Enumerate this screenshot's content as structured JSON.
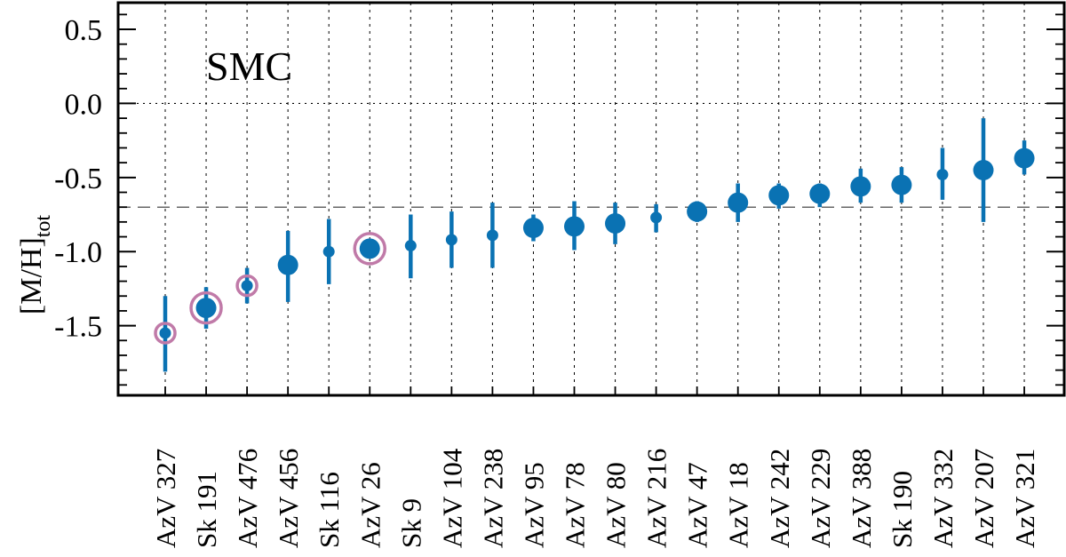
{
  "chart_data": {
    "type": "scatter",
    "panel_label": "SMC",
    "ylabel": {
      "main": "[M/H]",
      "sub": "tot"
    },
    "ylim": [
      -1.97,
      0.68
    ],
    "yticks": [
      0.5,
      0.0,
      -0.5,
      -1.0,
      -1.5
    ],
    "ytick_labels": [
      "0.5",
      "0.0",
      "-0.5",
      "-1.0",
      "-1.5"
    ],
    "reference_lines": {
      "dotted_y": 0.0,
      "dashed_y": -0.7
    },
    "categories": [
      "AzV 327",
      "Sk 191",
      "AzV 476",
      "AzV 456",
      "Sk 116",
      "AzV 26",
      "Sk 9",
      "AzV 104",
      "AzV 238",
      "AzV 95",
      "AzV 78",
      "AzV 80",
      "AzV 216",
      "AzV 47",
      "AzV 18",
      "AzV 242",
      "AzV 229",
      "AzV 388",
      "Sk 190",
      "AzV 332",
      "AzV 207",
      "AzV 321"
    ],
    "points": [
      {
        "name": "AzV 327",
        "y": -1.55,
        "lo": -1.81,
        "hi": -1.3,
        "size": "small",
        "ring": true
      },
      {
        "name": "Sk 191",
        "y": -1.38,
        "lo": -1.52,
        "hi": -1.24,
        "size": "large",
        "ring": true
      },
      {
        "name": "AzV 476",
        "y": -1.23,
        "lo": -1.35,
        "hi": -1.11,
        "size": "small",
        "ring": true
      },
      {
        "name": "AzV 456",
        "y": -1.09,
        "lo": -1.34,
        "hi": -0.86,
        "size": "large",
        "ring": false
      },
      {
        "name": "Sk 116",
        "y": -1.0,
        "lo": -1.22,
        "hi": -0.78,
        "size": "small",
        "ring": false
      },
      {
        "name": "AzV 26",
        "y": -0.98,
        "lo": -1.04,
        "hi": -0.92,
        "size": "large",
        "ring": true
      },
      {
        "name": "Sk 9",
        "y": -0.96,
        "lo": -1.18,
        "hi": -0.75,
        "size": "small",
        "ring": false
      },
      {
        "name": "AzV 104",
        "y": -0.92,
        "lo": -1.11,
        "hi": -0.73,
        "size": "small",
        "ring": false
      },
      {
        "name": "AzV 238",
        "y": -0.89,
        "lo": -1.11,
        "hi": -0.67,
        "size": "small",
        "ring": false
      },
      {
        "name": "AzV 95",
        "y": -0.84,
        "lo": -0.93,
        "hi": -0.75,
        "size": "large",
        "ring": false
      },
      {
        "name": "AzV 78",
        "y": -0.83,
        "lo": -0.99,
        "hi": -0.66,
        "size": "large",
        "ring": false
      },
      {
        "name": "AzV 80",
        "y": -0.81,
        "lo": -0.95,
        "hi": -0.67,
        "size": "large",
        "ring": false
      },
      {
        "name": "AzV 216",
        "y": -0.77,
        "lo": -0.87,
        "hi": -0.68,
        "size": "small",
        "ring": false
      },
      {
        "name": "AzV 47",
        "y": -0.73,
        "lo": -0.8,
        "hi": -0.66,
        "size": "large",
        "ring": false
      },
      {
        "name": "AzV 18",
        "y": -0.67,
        "lo": -0.8,
        "hi": -0.54,
        "size": "large",
        "ring": false
      },
      {
        "name": "AzV 242",
        "y": -0.62,
        "lo": -0.71,
        "hi": -0.54,
        "size": "large",
        "ring": false
      },
      {
        "name": "AzV 229",
        "y": -0.61,
        "lo": -0.7,
        "hi": -0.54,
        "size": "large",
        "ring": false
      },
      {
        "name": "AzV 388",
        "y": -0.56,
        "lo": -0.67,
        "hi": -0.44,
        "size": "large",
        "ring": false
      },
      {
        "name": "Sk 190",
        "y": -0.55,
        "lo": -0.67,
        "hi": -0.43,
        "size": "large",
        "ring": false
      },
      {
        "name": "AzV 332",
        "y": -0.48,
        "lo": -0.65,
        "hi": -0.3,
        "size": "small",
        "ring": false
      },
      {
        "name": "AzV 207",
        "y": -0.45,
        "lo": -0.8,
        "hi": -0.1,
        "size": "large",
        "ring": false
      },
      {
        "name": "AzV 321",
        "y": -0.37,
        "lo": -0.48,
        "hi": -0.25,
        "size": "large",
        "ring": false
      }
    ],
    "colors": {
      "marker": "#0a72b3",
      "ring": "#c07aa8",
      "axis": "#000000",
      "grid": "#000000"
    },
    "grid": true
  }
}
